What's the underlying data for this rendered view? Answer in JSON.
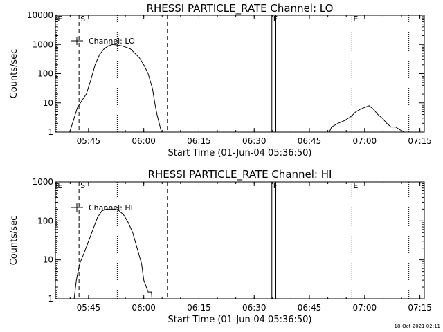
{
  "footer": {
    "timestamp": "18-Oct-2021 02:11"
  },
  "chart_data": [
    {
      "type": "line",
      "title": "RHESSI PARTICLE_RATE Channel: LO",
      "xlabel": "Start Time (01-Jun-04 05:36:50)",
      "ylabel": "Counts/sec",
      "yscale": "log",
      "xlim": [
        5.6,
        7.27
      ],
      "ylim": [
        1,
        10000
      ],
      "xticks": [
        5.75,
        6.0,
        6.25,
        6.5,
        6.75,
        7.0,
        7.25
      ],
      "xtick_labels": [
        "05:45",
        "06:00",
        "06:15",
        "06:30",
        "06:45",
        "07:00",
        "07:15"
      ],
      "yticks": [
        1,
        10,
        100,
        1000,
        10000
      ],
      "ytick_labels": [
        "1",
        "10",
        "100",
        "1000",
        "10000"
      ],
      "legend": {
        "label": "Channel: LO",
        "location": "top-left"
      },
      "markers": [
        {
          "label": "E",
          "x": 5.604,
          "style": "dotted"
        },
        {
          "label": "S",
          "x": 5.707,
          "style": "dashed"
        },
        {
          "label": "",
          "x": 5.88,
          "style": "dotted"
        },
        {
          "label": "",
          "x": 6.107,
          "style": "dashed"
        },
        {
          "label": "F",
          "x": 6.58,
          "style": "solid"
        },
        {
          "label": "",
          "x": 6.598,
          "style": "solid"
        },
        {
          "label": "E",
          "x": 6.942,
          "style": "dotted"
        },
        {
          "label": "",
          "x": 7.2,
          "style": "dotted"
        }
      ],
      "series": [
        {
          "name": "Channel: LO",
          "segments": [
            {
              "x": [
                5.665,
                5.685,
                5.7,
                5.72,
                5.74,
                5.76,
                5.78,
                5.8,
                5.82,
                5.84,
                5.86,
                5.88,
                5.9,
                5.92,
                5.94,
                5.96,
                5.98,
                6.0,
                6.02,
                6.04,
                6.05,
                6.06,
                6.07,
                6.08,
                6.085
              ],
              "y": [
                1,
                3,
                7,
                12,
                20,
                60,
                200,
                450,
                700,
                900,
                1000,
                950,
                900,
                800,
                700,
                500,
                350,
                200,
                100,
                30,
                10,
                4,
                2,
                1,
                1
              ]
            },
            {
              "x": [
                6.84,
                6.85,
                6.88,
                6.91,
                6.94,
                6.96,
                6.98,
                7.0,
                7.02,
                7.03,
                7.04,
                7.06,
                7.08,
                7.1,
                7.12,
                7.14,
                7.16,
                7.18
              ],
              "y": [
                1,
                1.5,
                2,
                2.5,
                3.5,
                5,
                6,
                7,
                8,
                7,
                6,
                4,
                3,
                2,
                1.5,
                1.5,
                1.2,
                1
              ]
            }
          ]
        }
      ]
    },
    {
      "type": "line",
      "title": "RHESSI PARTICLE_RATE Channel: HI",
      "xlabel": "Start Time (01-Jun-04 05:36:50)",
      "ylabel": "Counts/sec",
      "yscale": "log",
      "xlim": [
        5.6,
        7.27
      ],
      "ylim": [
        1,
        1000
      ],
      "xticks": [
        5.75,
        6.0,
        6.25,
        6.5,
        6.75,
        7.0,
        7.25
      ],
      "xtick_labels": [
        "05:45",
        "06:00",
        "06:15",
        "06:30",
        "06:45",
        "07:00",
        "07:15"
      ],
      "yticks": [
        1,
        10,
        100,
        1000
      ],
      "ytick_labels": [
        "1",
        "10",
        "100",
        "1000"
      ],
      "legend": {
        "label": "Channel: HI",
        "location": "top-left"
      },
      "markers": [
        {
          "label": "E",
          "x": 5.604,
          "style": "dotted"
        },
        {
          "label": "S",
          "x": 5.707,
          "style": "dashed"
        },
        {
          "label": "",
          "x": 5.88,
          "style": "dotted"
        },
        {
          "label": "",
          "x": 6.107,
          "style": "dashed"
        },
        {
          "label": "F",
          "x": 6.58,
          "style": "solid"
        },
        {
          "label": "",
          "x": 6.598,
          "style": "solid"
        },
        {
          "label": "E",
          "x": 6.942,
          "style": "dotted"
        },
        {
          "label": "",
          "x": 7.2,
          "style": "dotted"
        }
      ],
      "series": [
        {
          "name": "Channel: HI",
          "segments": [
            {
              "x": [
                5.685,
                5.695,
                5.71,
                5.73,
                5.75,
                5.77,
                5.79,
                5.81,
                5.83,
                5.85,
                5.87,
                5.89,
                5.91,
                5.93,
                5.95,
                5.97,
                5.99,
                6.0,
                6.02,
                6.035,
                6.037
              ],
              "y": [
                1,
                3,
                8,
                15,
                30,
                60,
                120,
                180,
                200,
                200,
                200,
                180,
                140,
                90,
                50,
                20,
                8,
                3,
                1.5,
                1.5,
                1
              ]
            }
          ]
        }
      ]
    }
  ]
}
